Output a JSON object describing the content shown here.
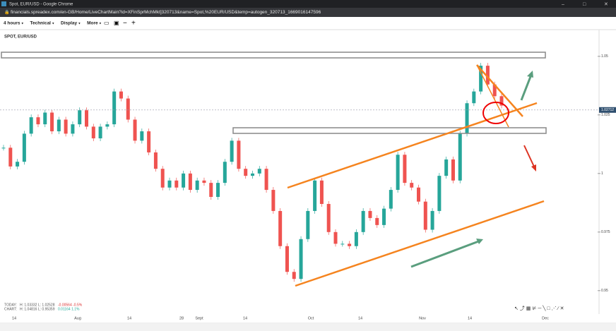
{
  "window_title": "Spot, EUR/USD - Google Chrome",
  "url": "financials.spreadex.com/en-GB/Home/LiveChartMain?id=XFinSprMchMkt]320713&name=Spot,%20EUR/USD&temp=autogen_320713_1669016147596",
  "toolbar": [
    "4 hours",
    "Technical",
    "Display",
    "More"
  ],
  "stats": {
    "today_label": "TODAY:",
    "today": "H: 1.03332  L: 1.02528",
    "today_change": "-0.00564  -0.5%",
    "chart_label": "CHART:",
    "chart": "H: 1.04816  L: 0.95359",
    "chart_change": "0.01164  1.1%"
  },
  "chart_data": {
    "type": "candlestick",
    "title": "SPOT, EUR/USD",
    "values": [
      1.011,
      1.003,
      1.005,
      1.017,
      1.024,
      1.021,
      1.026,
      1.018,
      1.023,
      1.017,
      1.021,
      1.027,
      1.02,
      1.015,
      1.02,
      1.021,
      1.035,
      1.032,
      1.023,
      1.014,
      1.018,
      1.009,
      1.002,
      0.994,
      0.997,
      0.994,
      1.0,
      0.993,
      0.997,
      0.996,
      0.99,
      0.996,
      1.005,
      1.014,
      1.002,
      0.999,
      1.0,
      1.002,
      0.993,
      0.984,
      0.969,
      0.958,
      0.955,
      0.972,
      0.984,
      0.997,
      0.987,
      0.975,
      0.97,
      0.97,
      0.969,
      0.975,
      0.984,
      0.981,
      0.978,
      0.985,
      0.993,
      1.008,
      0.996,
      0.994,
      0.988,
      0.976,
      0.984,
      0.999,
      1.006,
      0.997,
      1.017,
      1.03,
      1.035,
      1.046,
      1.038,
      1.033,
      1.029
    ],
    "up_color": "#26a69a",
    "down_color": "#ef5350",
    "ylim": [
      0.94,
      1.0614
    ],
    "yticks": [
      1.05,
      1.025,
      1,
      0.975,
      0.95
    ],
    "last_price": 1.02712,
    "x_labels": [
      "14",
      "Aug",
      "14",
      "28",
      "Sept",
      "14",
      "Oct",
      "14",
      "Nov",
      "14",
      "Dec"
    ]
  }
}
